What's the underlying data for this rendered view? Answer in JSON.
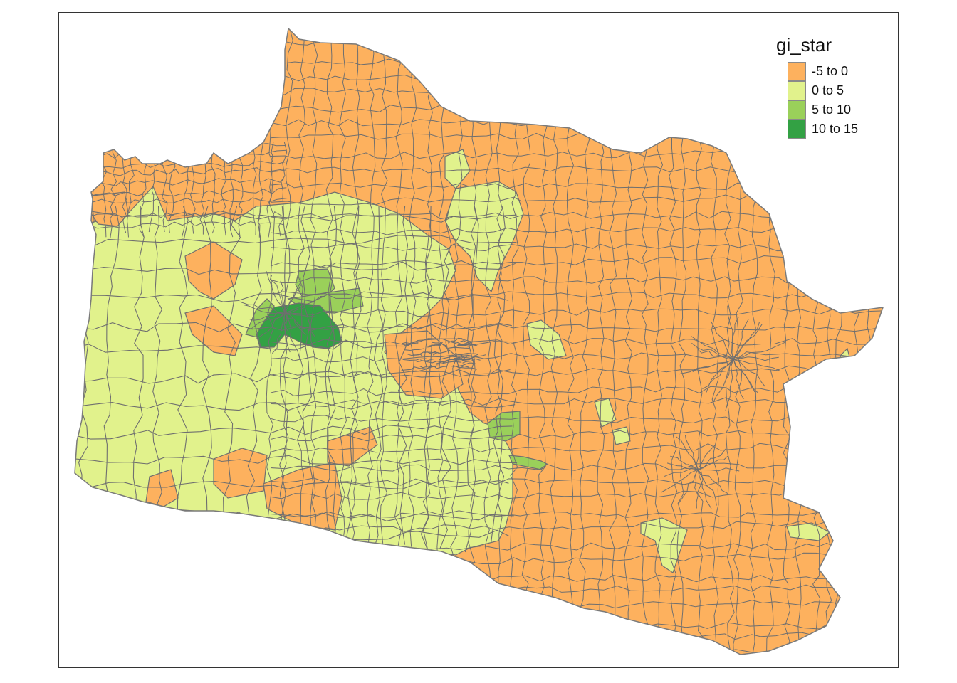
{
  "legend": {
    "title": "gi_star",
    "items": [
      {
        "label": "-5 to 0",
        "color": "#fdb15e"
      },
      {
        "label": "0 to 5",
        "color": "#e1f28c"
      },
      {
        "label": "5 to 10",
        "color": "#9ad05a"
      },
      {
        "label": "10 to 15",
        "color": "#33a144"
      }
    ]
  },
  "colors": {
    "border": "#6f6f6f",
    "background": "#ffffff"
  }
}
